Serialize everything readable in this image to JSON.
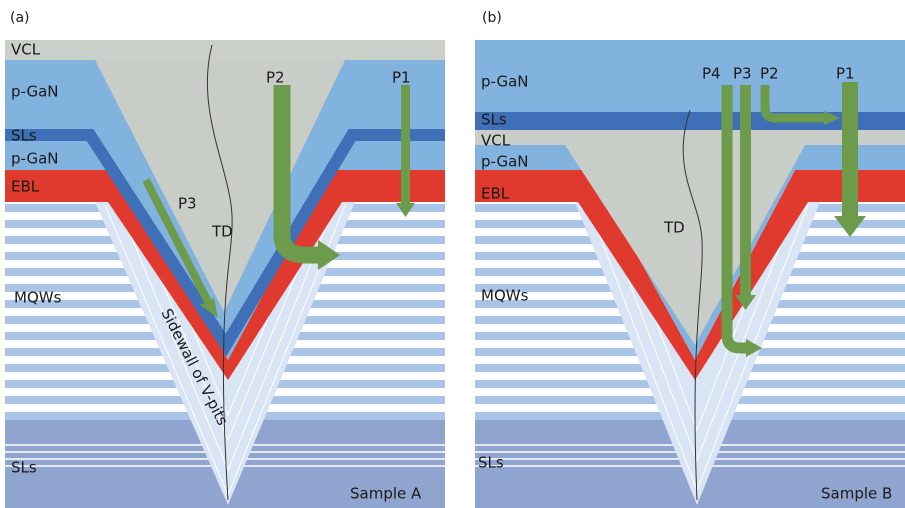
{
  "panels": [
    {
      "tag": "(a)",
      "layers": [
        "VCL",
        "p-GaN",
        "SLs",
        "p-GaN",
        "EBL",
        "MQWs",
        "SLs"
      ],
      "paths": [
        "P1",
        "P2",
        "P3"
      ],
      "td": "TD",
      "sidewall": "Sidewall of V-pits",
      "sample": "Sample A"
    },
    {
      "tag": "(b)",
      "layers": [
        "p-GaN",
        "SLs",
        "VCL",
        "p-GaN",
        "EBL",
        "MQWs",
        "SLs"
      ],
      "paths": [
        "P4",
        "P3",
        "P2",
        "P1"
      ],
      "td": "TD",
      "sample": "Sample B"
    }
  ]
}
